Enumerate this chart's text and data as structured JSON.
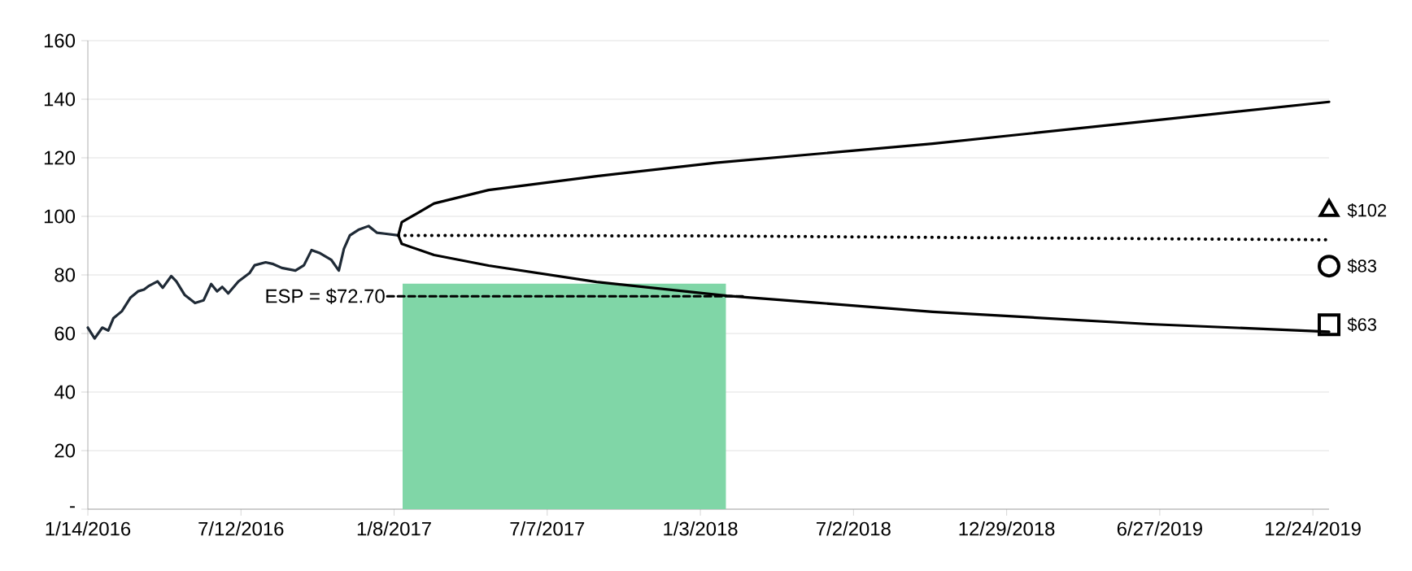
{
  "chart_data": {
    "type": "line",
    "grid": "y",
    "xlim": [
      "2016-01-14",
      "2020-01-12"
    ],
    "xticks": [
      {
        "value": "2016-01-14",
        "label": "1/14/2016"
      },
      {
        "value": "2016-07-12",
        "label": "7/12/2016"
      },
      {
        "value": "2017-01-08",
        "label": "1/8/2017"
      },
      {
        "value": "2017-07-07",
        "label": "7/7/2017"
      },
      {
        "value": "2018-01-03",
        "label": "1/3/2018"
      },
      {
        "value": "2018-07-02",
        "label": "7/2/2018"
      },
      {
        "value": "2018-12-29",
        "label": "12/29/2018"
      },
      {
        "value": "2019-06-27",
        "label": "6/27/2019"
      },
      {
        "value": "2019-12-24",
        "label": "12/24/2019"
      }
    ],
    "ylim": [
      0,
      160
    ],
    "yticks": [
      {
        "value": 0,
        "label": "-"
      },
      20,
      40,
      60,
      80,
      100,
      120,
      140,
      160
    ],
    "annotations": [
      {
        "text": "ESP = $72.70",
        "x": "2016-12-31",
        "y": 72.7
      }
    ],
    "series": [
      {
        "type": "area",
        "color": "#80d6a7",
        "x": [
          "2017-01-18",
          "2018-02-02"
        ],
        "values": [
          77,
          77
        ]
      },
      {
        "color": "#1f2a36",
        "line_style": "solid",
        "x": [
          "2016-01-14",
          "2016-01-22",
          "2016-01-31",
          "2016-02-07",
          "2016-02-13",
          "2016-02-23",
          "2016-03-04",
          "2016-03-13",
          "2016-03-20",
          "2016-03-26",
          "2016-04-05",
          "2016-04-11",
          "2016-04-21",
          "2016-04-27",
          "2016-05-07",
          "2016-05-19",
          "2016-05-29",
          "2016-06-07",
          "2016-06-14",
          "2016-06-20",
          "2016-06-27",
          "2016-07-09",
          "2016-07-22",
          "2016-07-28",
          "2016-08-10",
          "2016-08-19",
          "2016-08-29",
          "2016-09-14",
          "2016-09-24",
          "2016-10-03",
          "2016-10-13",
          "2016-10-26",
          "2016-11-04",
          "2016-11-10",
          "2016-11-17",
          "2016-11-27",
          "2016-12-09",
          "2016-12-19",
          "2016-12-28",
          "2017-01-13"
        ],
        "values": [
          62,
          58.3,
          62,
          61,
          65.2,
          67.6,
          72.2,
          74.4,
          75,
          76.3,
          77.8,
          75.6,
          79.6,
          77.8,
          73.1,
          70.4,
          71.3,
          76.9,
          74.4,
          75.9,
          73.7,
          77.8,
          80.6,
          83.3,
          84.3,
          83.7,
          82.4,
          81.5,
          83.3,
          88.5,
          87.4,
          85.2,
          81.5,
          88.9,
          93.5,
          95.4,
          96.7,
          94.4,
          94.1,
          93.5
        ]
      },
      {
        "color": "#000000",
        "line_style": "solid",
        "x": [
          "2017-01-13",
          "2017-01-17",
          "2017-02-24",
          "2017-04-29",
          "2017-09-03",
          "2018-01-21",
          "2018-10-03",
          "2019-06-15",
          "2020-01-12"
        ],
        "values": [
          93.5,
          98,
          104.4,
          109,
          113.7,
          118.3,
          124.8,
          132.6,
          139.1
        ]
      },
      {
        "color": "#000000",
        "line_style": "dotted",
        "x": [
          "2017-01-13",
          "2018-01-21",
          "2019-02-01",
          "2020-01-12"
        ],
        "values": [
          93.5,
          93.3,
          92.6,
          92
        ]
      },
      {
        "color": "#000000",
        "line_style": "solid",
        "x": [
          "2017-01-13",
          "2017-01-17",
          "2017-02-24",
          "2017-04-29",
          "2017-09-03",
          "2018-02-03",
          "2018-05-16",
          "2018-10-03",
          "2019-06-15",
          "2020-01-12"
        ],
        "values": [
          93.5,
          90.6,
          86.8,
          83.2,
          77.6,
          72.9,
          70.6,
          67.4,
          63.2,
          60.6
        ]
      },
      {
        "color": "#000000",
        "line_style": "dashed",
        "x": [
          "2016-12-31",
          "2018-02-25"
        ],
        "values": [
          72.7,
          72.7
        ]
      },
      {
        "type": "scatter",
        "color": "#000000",
        "marker": "triangle",
        "x": [
          "2020-01-12"
        ],
        "values": [
          102
        ],
        "value_labels": [
          "$102"
        ]
      },
      {
        "type": "scatter",
        "color": "#000000",
        "marker": "circle",
        "x": [
          "2020-01-12"
        ],
        "values": [
          83
        ],
        "value_labels": [
          "$83"
        ]
      },
      {
        "type": "scatter",
        "color": "#000000",
        "marker": "square",
        "x": [
          "2020-01-12"
        ],
        "values": [
          63
        ],
        "value_labels": [
          "$63"
        ]
      }
    ]
  }
}
